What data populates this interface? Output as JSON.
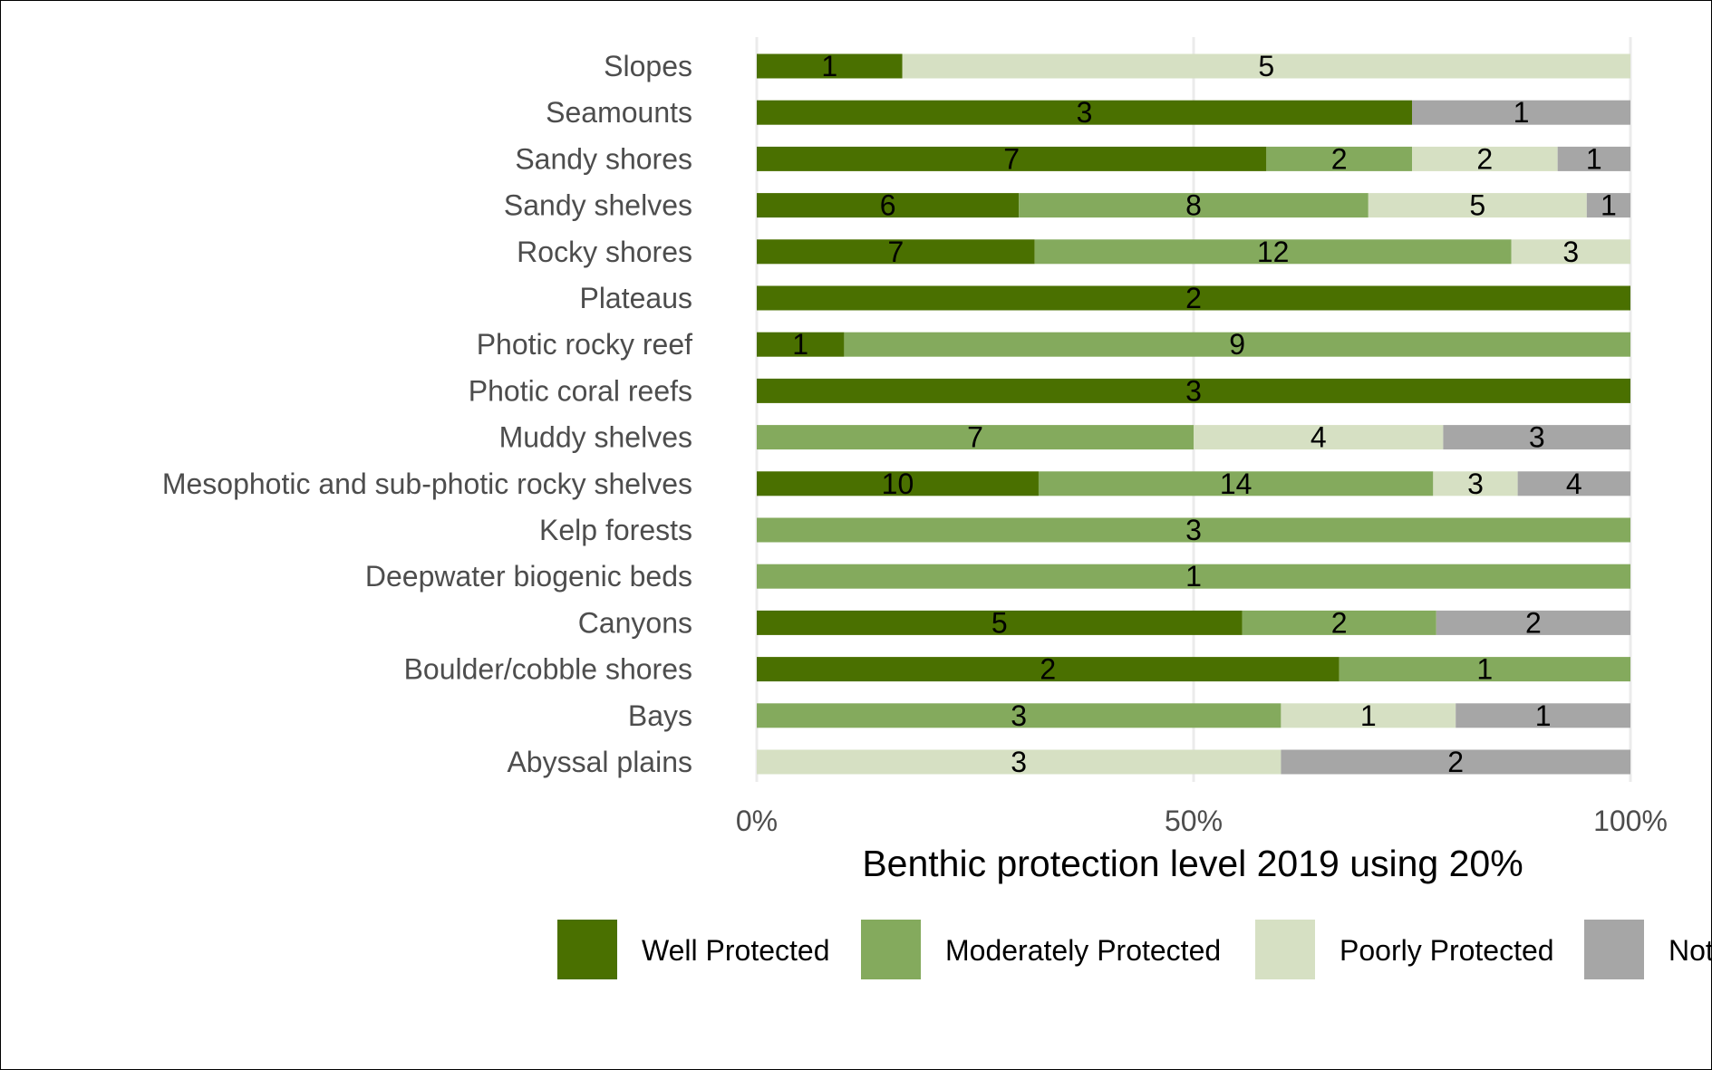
{
  "chart_data": {
    "type": "bar",
    "orientation": "horizontal",
    "stacked": "percent",
    "title": "",
    "xlabel": "Benthic protection level 2019 using 20%",
    "ylabel": "",
    "xlim": [
      0,
      100
    ],
    "x_ticks": [
      "0%",
      "50%",
      "100%"
    ],
    "grid": true,
    "legend_position": "bottom",
    "categories": [
      "Slopes",
      "Seamounts",
      "Sandy shores",
      "Sandy shelves",
      "Rocky shores",
      "Plateaus",
      "Photic rocky reef",
      "Photic coral reefs",
      "Muddy shelves",
      "Mesophotic and sub-photic rocky shelves",
      "Kelp forests",
      "Deepwater biogenic beds",
      "Canyons",
      "Boulder/cobble shores",
      "Bays",
      "Abyssal plains"
    ],
    "series": [
      {
        "name": "Well Protected",
        "color": "#4a7000",
        "values": [
          1,
          3,
          7,
          6,
          7,
          2,
          1,
          3,
          0,
          10,
          0,
          0,
          5,
          2,
          0,
          0
        ]
      },
      {
        "name": "Moderately Protected",
        "color": "#84aa5d",
        "values": [
          0,
          0,
          2,
          8,
          12,
          0,
          9,
          0,
          7,
          14,
          3,
          1,
          2,
          1,
          3,
          0
        ]
      },
      {
        "name": "Poorly Protected",
        "color": "#d6e0c3",
        "values": [
          5,
          0,
          2,
          5,
          3,
          0,
          0,
          0,
          4,
          3,
          0,
          0,
          0,
          0,
          1,
          3
        ]
      },
      {
        "name": "Not Protected",
        "color": "#a6a6a6",
        "values": [
          0,
          1,
          1,
          1,
          0,
          0,
          0,
          0,
          3,
          4,
          0,
          0,
          2,
          0,
          1,
          2
        ]
      }
    ]
  }
}
